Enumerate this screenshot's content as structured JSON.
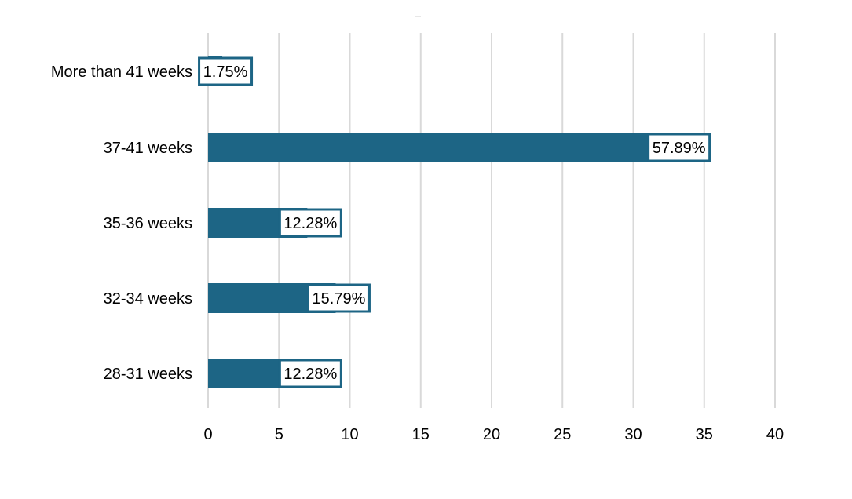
{
  "chart_data": {
    "type": "bar",
    "orientation": "horizontal",
    "title": "",
    "xlabel": "",
    "ylabel": "",
    "categories": [
      "More than 41 weeks",
      "37-41 weeks",
      "35-36 weeks",
      "32-34 weeks",
      "28-31 weeks"
    ],
    "values": [
      1,
      33,
      7,
      9,
      7
    ],
    "data_labels": [
      "1.75%",
      "57.89%",
      "12.28%",
      "15.79%",
      "12.28%"
    ],
    "xlim": [
      0,
      40
    ],
    "xticks": [
      0,
      5,
      10,
      15,
      20,
      25,
      30,
      35,
      40
    ],
    "grid": "vertical",
    "legend": "none",
    "bar_color": "#1d6585"
  }
}
